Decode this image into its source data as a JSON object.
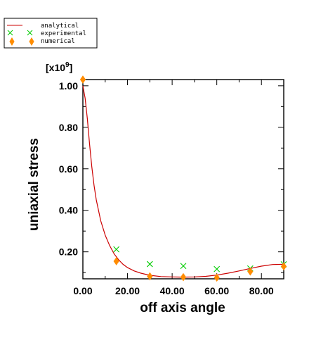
{
  "chart_data": {
    "type": "scatter",
    "xlabel": "off axis angle",
    "ylabel": "uniaxial stress",
    "y_multiplier": "[x10",
    "y_multiplier_exp": "9",
    "y_multiplier_close": "]",
    "xlim": [
      0,
      90
    ],
    "ylim": [
      0.07,
      1.03
    ],
    "x_ticks": [
      0,
      20,
      40,
      60,
      80
    ],
    "x_tick_labels": [
      "0.00",
      "20.00",
      "40.00",
      "60.00",
      "80.00"
    ],
    "y_ticks": [
      0.2,
      0.4,
      0.6,
      0.8,
      1.0
    ],
    "y_tick_labels": [
      "0.20",
      "0.40",
      "0.60",
      "0.80",
      "1.00"
    ],
    "legend_position": "top-left",
    "series": [
      {
        "name": "analytical",
        "kind": "line",
        "color": "#cc0000",
        "x": [
          0,
          1,
          2,
          3,
          4,
          5,
          6,
          8,
          10,
          12,
          14,
          16,
          18,
          20,
          23,
          26,
          30,
          35,
          40,
          45,
          50,
          55,
          60,
          65,
          70,
          75,
          80,
          85,
          90
        ],
        "y": [
          1.0,
          0.94,
          0.84,
          0.72,
          0.61,
          0.52,
          0.45,
          0.35,
          0.28,
          0.23,
          0.19,
          0.162,
          0.14,
          0.124,
          0.108,
          0.097,
          0.087,
          0.081,
          0.079,
          0.078,
          0.079,
          0.082,
          0.088,
          0.097,
          0.108,
          0.12,
          0.131,
          0.139,
          0.14
        ]
      },
      {
        "name": "experimental",
        "kind": "marker",
        "marker": "x",
        "color": "#00cc00",
        "x": [
          15,
          30,
          45,
          60,
          75,
          90
        ],
        "y": [
          0.212,
          0.141,
          0.132,
          0.117,
          0.12,
          0.14
        ]
      },
      {
        "name": "numerical",
        "kind": "marker",
        "marker": "diamond",
        "color": "#ff8c00",
        "x": [
          0,
          15,
          30,
          45,
          60,
          75,
          90
        ],
        "y": [
          1.03,
          0.155,
          0.082,
          0.078,
          0.076,
          0.105,
          0.13
        ]
      }
    ]
  }
}
